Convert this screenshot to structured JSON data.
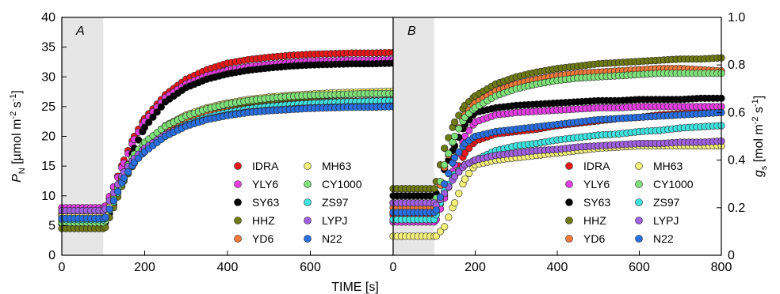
{
  "chart_data": [
    {
      "type": "scatter",
      "panel_label": "A",
      "xlabel": "TIME [s]",
      "ylabel": {
        "main": "P",
        "sub": "N",
        "unit_text": " [µmol m",
        "sup1": "-2",
        "mid": " s",
        "sup2": "-1",
        "end": "]"
      },
      "xlim": [
        0,
        800
      ],
      "ylim": [
        0,
        40
      ],
      "xticks": [
        "0",
        "200",
        "400",
        "600"
      ],
      "yticks": [
        "0",
        "5",
        "10",
        "15",
        "20",
        "25",
        "30",
        "35",
        "40"
      ],
      "shaded_region_x": [
        0,
        100
      ],
      "grid": false,
      "legend_placement": "bottom-right",
      "series": [
        {
          "name": "IDRA",
          "color": "#e8191b",
          "x": [
            0,
            100,
            105,
            125,
            150,
            175,
            200,
            250,
            300,
            350,
            400,
            450,
            500,
            550,
            600,
            650,
            700,
            750,
            800
          ],
          "y": [
            7.0,
            7.0,
            7.5,
            11.5,
            16,
            20,
            23,
            27,
            29.6,
            31.2,
            32.3,
            32.9,
            33.3,
            33.6,
            33.8,
            33.9,
            34.0,
            34.0,
            34.1
          ]
        },
        {
          "name": "YLY6",
          "color": "#e23ee0",
          "x": [
            0,
            100,
            105,
            125,
            150,
            175,
            200,
            250,
            300,
            350,
            400,
            450,
            500,
            550,
            600,
            650,
            700,
            750,
            800
          ],
          "y": [
            8.0,
            8.0,
            8.3,
            11.5,
            15.5,
            19.5,
            22.5,
            26.5,
            28.8,
            30.2,
            31.1,
            31.7,
            32.1,
            32.4,
            32.6,
            32.7,
            32.8,
            32.8,
            32.9
          ]
        },
        {
          "name": "SY63",
          "color": "#000000",
          "x": [
            0,
            100,
            105,
            125,
            150,
            175,
            200,
            250,
            300,
            350,
            400,
            450,
            500,
            550,
            600,
            650,
            700,
            750,
            800
          ],
          "y": [
            5.3,
            5.3,
            5.5,
            8.5,
            13.5,
            18,
            21.5,
            25.8,
            28.2,
            29.6,
            30.5,
            31.1,
            31.5,
            31.8,
            32.0,
            32.1,
            32.2,
            32.2,
            32.3
          ]
        },
        {
          "name": "HHZ",
          "color": "#6e7a14",
          "x": [
            0,
            100,
            105,
            125,
            150,
            175,
            200,
            250,
            300,
            350,
            400,
            450,
            500,
            550,
            600,
            650,
            700,
            750,
            800
          ],
          "y": [
            4.5,
            4.5,
            4.7,
            8.0,
            12.5,
            15.5,
            17.8,
            20.7,
            22.6,
            23.9,
            24.8,
            25.5,
            26.0,
            26.4,
            26.7,
            26.9,
            27.1,
            27.2,
            27.3
          ]
        },
        {
          "name": "YD6",
          "color": "#f07838",
          "x": [
            0,
            100,
            105,
            125,
            150,
            175,
            200,
            250,
            300,
            350,
            400,
            450,
            500,
            550,
            600,
            650,
            700,
            750,
            800
          ],
          "y": [
            6.8,
            6.8,
            7.0,
            10.0,
            13.8,
            16.4,
            18.4,
            20.9,
            22.4,
            23.5,
            24.2,
            24.7,
            25.1,
            25.4,
            25.6,
            25.8,
            25.9,
            26.0,
            26.1
          ]
        },
        {
          "name": "MH63",
          "color": "#f5f07a",
          "x": [
            0,
            100,
            105,
            125,
            150,
            175,
            200,
            250,
            300,
            350,
            400,
            450,
            500,
            550,
            600,
            650,
            700,
            750,
            800
          ],
          "y": [
            6.5,
            6.5,
            6.8,
            9.5,
            13.5,
            16.5,
            18.8,
            21.8,
            23.6,
            24.8,
            25.6,
            26.2,
            26.6,
            26.9,
            27.1,
            27.3,
            27.4,
            27.5,
            27.6
          ]
        },
        {
          "name": "CY1000",
          "color": "#7fe07a",
          "x": [
            0,
            100,
            105,
            125,
            150,
            175,
            200,
            250,
            300,
            350,
            400,
            450,
            500,
            550,
            600,
            650,
            700,
            750,
            800
          ],
          "y": [
            5.5,
            5.5,
            5.8,
            9.5,
            14,
            17,
            19,
            21.7,
            23.4,
            24.6,
            25.4,
            26.0,
            26.4,
            26.7,
            26.9,
            27.0,
            27.1,
            27.2,
            27.2
          ]
        },
        {
          "name": "ZS97",
          "color": "#3fe3e0",
          "x": [
            0,
            100,
            105,
            125,
            150,
            175,
            200,
            250,
            300,
            350,
            400,
            450,
            500,
            550,
            600,
            650,
            700,
            750,
            800
          ],
          "y": [
            6.0,
            6.0,
            6.2,
            9.0,
            12.8,
            15.6,
            17.6,
            20.3,
            22.0,
            23.2,
            24.0,
            24.6,
            25.0,
            25.3,
            25.5,
            25.7,
            25.8,
            25.9,
            26.0
          ]
        },
        {
          "name": "LYPJ",
          "color": "#a060e0",
          "x": [
            0,
            100,
            105,
            125,
            150,
            175,
            200,
            250,
            300,
            350,
            400,
            450,
            500,
            550,
            600,
            650,
            700,
            750,
            800
          ],
          "y": [
            7.5,
            7.5,
            7.8,
            10.5,
            14.0,
            16.3,
            18.0,
            20.3,
            21.8,
            22.9,
            23.6,
            24.1,
            24.4,
            24.6,
            24.8,
            24.9,
            25.0,
            25.0,
            25.1
          ]
        },
        {
          "name": "N22",
          "color": "#2a6fe0",
          "x": [
            0,
            100,
            105,
            125,
            150,
            175,
            200,
            250,
            300,
            350,
            400,
            450,
            500,
            550,
            600,
            650,
            700,
            750,
            800
          ],
          "y": [
            6.2,
            6.2,
            6.4,
            9.2,
            13.0,
            15.6,
            17.4,
            20.0,
            21.7,
            22.8,
            23.5,
            24.0,
            24.3,
            24.5,
            24.7,
            24.8,
            24.9,
            24.9,
            25.0
          ]
        }
      ]
    },
    {
      "type": "scatter",
      "panel_label": "B",
      "xlabel": "TIME [s]",
      "ylabel": {
        "main": "g",
        "sub": "s",
        "unit_text": " [mol m",
        "sup1": "-2",
        "mid": " s",
        "sup2": "-1",
        "end": "]"
      },
      "xlim": [
        0,
        800
      ],
      "ylim": [
        0,
        1.0
      ],
      "xticks": [
        "0",
        "200",
        "400",
        "600",
        "800"
      ],
      "yticks": [
        "0",
        "0.2",
        "0.4",
        "0.6",
        "0.8",
        "1.0"
      ],
      "shaded_region_x": [
        0,
        100
      ],
      "grid": false,
      "legend_placement": "bottom-right",
      "series": [
        {
          "name": "IDRA",
          "color": "#e8191b",
          "x": [
            0,
            100,
            105,
            125,
            150,
            175,
            200,
            250,
            300,
            350,
            400,
            450,
            500,
            550,
            600,
            650,
            700,
            750,
            800
          ],
          "y": [
            0.17,
            0.17,
            0.18,
            0.25,
            0.34,
            0.43,
            0.48,
            0.51,
            0.52,
            0.53,
            0.545,
            0.555,
            0.565,
            0.575,
            0.58,
            0.59,
            0.595,
            0.6,
            0.6
          ]
        },
        {
          "name": "YLY6",
          "color": "#e23ee0",
          "x": [
            0,
            100,
            105,
            125,
            150,
            175,
            200,
            250,
            300,
            350,
            400,
            450,
            500,
            550,
            600,
            650,
            700,
            750,
            800
          ],
          "y": [
            0.14,
            0.14,
            0.15,
            0.24,
            0.38,
            0.5,
            0.56,
            0.59,
            0.6,
            0.605,
            0.61,
            0.615,
            0.62,
            0.62,
            0.625,
            0.625,
            0.625,
            0.625,
            0.625
          ]
        },
        {
          "name": "SY63",
          "color": "#000000",
          "x": [
            0,
            100,
            105,
            125,
            150,
            175,
            200,
            250,
            300,
            350,
            400,
            450,
            500,
            550,
            600,
            650,
            700,
            750,
            800
          ],
          "y": [
            0.25,
            0.25,
            0.26,
            0.36,
            0.46,
            0.55,
            0.6,
            0.62,
            0.63,
            0.635,
            0.64,
            0.645,
            0.65,
            0.65,
            0.655,
            0.655,
            0.655,
            0.66,
            0.66
          ]
        },
        {
          "name": "HHZ",
          "color": "#6e7a14",
          "x": [
            0,
            100,
            105,
            125,
            150,
            175,
            200,
            250,
            300,
            350,
            400,
            450,
            500,
            550,
            600,
            650,
            700,
            750,
            800
          ],
          "y": [
            0.28,
            0.28,
            0.31,
            0.45,
            0.56,
            0.63,
            0.67,
            0.72,
            0.75,
            0.77,
            0.785,
            0.795,
            0.805,
            0.81,
            0.815,
            0.82,
            0.825,
            0.825,
            0.83
          ]
        },
        {
          "name": "YD6",
          "color": "#f07838",
          "x": [
            0,
            100,
            105,
            125,
            150,
            175,
            200,
            250,
            300,
            350,
            400,
            450,
            500,
            550,
            600,
            650,
            700,
            750,
            800
          ],
          "y": [
            0.2,
            0.2,
            0.22,
            0.37,
            0.5,
            0.59,
            0.64,
            0.69,
            0.72,
            0.74,
            0.755,
            0.765,
            0.77,
            0.775,
            0.78,
            0.785,
            0.785,
            0.78,
            0.775
          ]
        },
        {
          "name": "MH63",
          "color": "#f5f07a",
          "x": [
            0,
            100,
            105,
            125,
            150,
            175,
            200,
            250,
            300,
            350,
            400,
            450,
            500,
            550,
            600,
            650,
            700,
            750,
            800
          ],
          "y": [
            0.08,
            0.08,
            0.08,
            0.12,
            0.22,
            0.32,
            0.38,
            0.4,
            0.41,
            0.42,
            0.43,
            0.44,
            0.45,
            0.455,
            0.46,
            0.46,
            0.46,
            0.46,
            0.46
          ]
        },
        {
          "name": "CY1000",
          "color": "#7fe07a",
          "x": [
            0,
            100,
            105,
            125,
            150,
            175,
            200,
            250,
            300,
            350,
            400,
            450,
            500,
            550,
            600,
            650,
            700,
            750,
            800
          ],
          "y": [
            0.22,
            0.22,
            0.24,
            0.38,
            0.5,
            0.58,
            0.62,
            0.67,
            0.7,
            0.72,
            0.735,
            0.745,
            0.75,
            0.755,
            0.76,
            0.765,
            0.765,
            0.765,
            0.765
          ]
        },
        {
          "name": "ZS97",
          "color": "#3fe3e0",
          "x": [
            0,
            100,
            105,
            125,
            150,
            175,
            200,
            250,
            300,
            350,
            400,
            450,
            500,
            550,
            600,
            650,
            700,
            750,
            800
          ],
          "y": [
            0.15,
            0.15,
            0.17,
            0.27,
            0.34,
            0.38,
            0.4,
            0.44,
            0.46,
            0.47,
            0.485,
            0.495,
            0.505,
            0.51,
            0.52,
            0.525,
            0.535,
            0.54,
            0.545
          ]
        },
        {
          "name": "LYPJ",
          "color": "#a060e0",
          "x": [
            0,
            100,
            105,
            125,
            150,
            175,
            200,
            250,
            300,
            350,
            400,
            450,
            500,
            550,
            600,
            650,
            700,
            750,
            800
          ],
          "y": [
            0.22,
            0.22,
            0.21,
            0.26,
            0.33,
            0.38,
            0.4,
            0.42,
            0.43,
            0.44,
            0.445,
            0.455,
            0.46,
            0.465,
            0.47,
            0.47,
            0.475,
            0.475,
            0.48
          ]
        },
        {
          "name": "N22",
          "color": "#2a6fe0",
          "x": [
            0,
            100,
            105,
            125,
            150,
            175,
            200,
            250,
            300,
            350,
            400,
            450,
            500,
            550,
            600,
            650,
            700,
            750,
            800
          ],
          "y": [
            0.18,
            0.18,
            0.19,
            0.3,
            0.41,
            0.47,
            0.5,
            0.52,
            0.53,
            0.54,
            0.55,
            0.56,
            0.57,
            0.575,
            0.58,
            0.585,
            0.59,
            0.595,
            0.6
          ]
        }
      ]
    }
  ]
}
